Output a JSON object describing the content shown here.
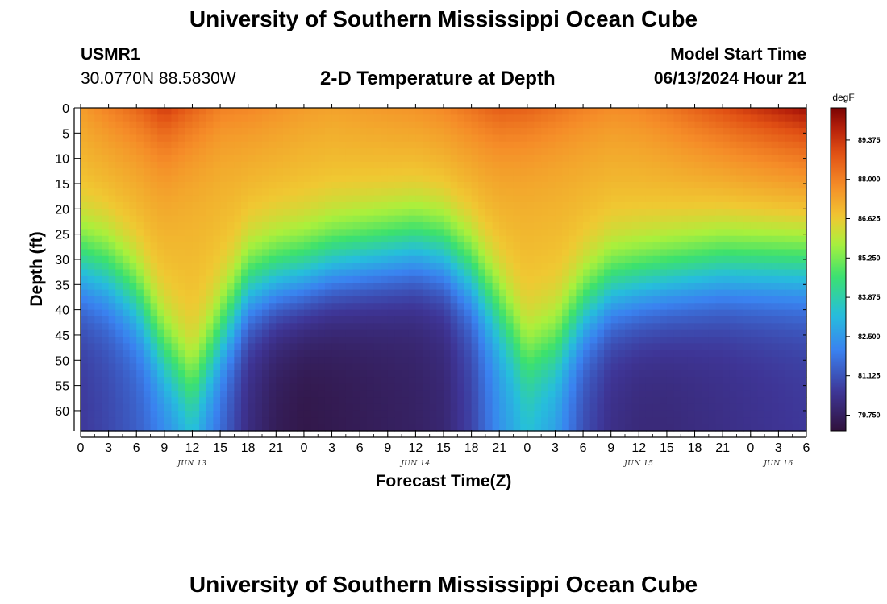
{
  "header": {
    "title": "University of Southern Mississippi Ocean Cube",
    "station": "USMR1",
    "coords": "30.0770N  88.5830W",
    "chart_title": "2-D Temperature at Depth",
    "model_label": "Model Start Time",
    "model_time": "06/13/2024 Hour 21"
  },
  "footer": {
    "title": "University of Southern Mississippi Ocean Cube"
  },
  "chart_data": {
    "type": "heatmap",
    "title": "2-D Temperature at Depth",
    "xlabel": "Forecast Time(Z)",
    "ylabel": "Depth (ft)",
    "x_unit": "hours from JUN 13 00Z",
    "xlim": [
      0,
      78
    ],
    "ylim": [
      0,
      64
    ],
    "x_ticks": [
      {
        "h": 0,
        "label": "0"
      },
      {
        "h": 3,
        "label": "3"
      },
      {
        "h": 6,
        "label": "6"
      },
      {
        "h": 9,
        "label": "9"
      },
      {
        "h": 12,
        "label": "12"
      },
      {
        "h": 15,
        "label": "15"
      },
      {
        "h": 18,
        "label": "18"
      },
      {
        "h": 21,
        "label": "21"
      },
      {
        "h": 24,
        "label": "0"
      },
      {
        "h": 27,
        "label": "3"
      },
      {
        "h": 30,
        "label": "6"
      },
      {
        "h": 33,
        "label": "9"
      },
      {
        "h": 36,
        "label": "12"
      },
      {
        "h": 39,
        "label": "15"
      },
      {
        "h": 42,
        "label": "18"
      },
      {
        "h": 45,
        "label": "21"
      },
      {
        "h": 48,
        "label": "0"
      },
      {
        "h": 51,
        "label": "3"
      },
      {
        "h": 54,
        "label": "6"
      },
      {
        "h": 57,
        "label": "9"
      },
      {
        "h": 60,
        "label": "12"
      },
      {
        "h": 63,
        "label": "15"
      },
      {
        "h": 66,
        "label": "18"
      },
      {
        "h": 69,
        "label": "21"
      },
      {
        "h": 72,
        "label": "0"
      },
      {
        "h": 75,
        "label": "3"
      },
      {
        "h": 78,
        "label": "6"
      }
    ],
    "date_labels": [
      {
        "h": 12,
        "label": "JUN 13"
      },
      {
        "h": 36,
        "label": "JUN 14"
      },
      {
        "h": 60,
        "label": "JUN 15"
      },
      {
        "h": 75,
        "label": "JUN 16"
      }
    ],
    "y_ticks": [
      0,
      5,
      10,
      15,
      20,
      25,
      30,
      35,
      40,
      45,
      50,
      55,
      60
    ],
    "colorbar": {
      "unit": "degF",
      "range": [
        79.2,
        90.5
      ],
      "ticks": [
        "89.375",
        "88.000",
        "86.625",
        "85.250",
        "83.875",
        "82.500",
        "81.125",
        "79.750"
      ]
    },
    "thermocline_depth_ft": {
      "hours": [
        0,
        3,
        6,
        9,
        12,
        15,
        18,
        21,
        24,
        27,
        30,
        33,
        36,
        39,
        42,
        45,
        48,
        51,
        54,
        57,
        60,
        63,
        66,
        69,
        72,
        75,
        78
      ],
      "values": [
        31,
        33,
        38,
        48,
        55,
        45,
        36,
        34,
        33,
        31,
        30,
        29,
        28,
        29,
        33,
        40,
        49,
        47,
        40,
        36,
        35,
        34,
        33,
        32,
        32,
        32,
        32
      ]
    },
    "deep_temp_degF": {
      "hours": [
        0,
        3,
        6,
        9,
        12,
        15,
        18,
        21,
        24,
        27,
        30,
        33,
        36,
        39,
        42,
        45,
        48,
        51,
        54,
        57,
        60,
        63,
        66,
        69,
        72,
        75,
        78
      ],
      "values": [
        80.6,
        80.9,
        81.3,
        82.0,
        82.8,
        81.5,
        80.2,
        79.6,
        79.4,
        79.5,
        79.6,
        79.7,
        79.8,
        80.0,
        80.8,
        82.3,
        83.2,
        82.5,
        81.0,
        80.3,
        80.1,
        80.1,
        80.2,
        80.3,
        80.4,
        80.5,
        80.6
      ]
    },
    "surface_temp_degF": {
      "hours": [
        0,
        3,
        6,
        9,
        12,
        15,
        18,
        21,
        24,
        27,
        30,
        33,
        36,
        39,
        42,
        45,
        48,
        51,
        54,
        57,
        60,
        63,
        66,
        69,
        72,
        75,
        78
      ],
      "values": [
        87.5,
        88.0,
        88.5,
        89.3,
        88.6,
        88.0,
        87.9,
        87.7,
        87.5,
        87.4,
        87.5,
        87.6,
        87.7,
        87.9,
        88.3,
        88.7,
        88.6,
        88.3,
        88.0,
        87.8,
        87.9,
        88.2,
        88.6,
        89.0,
        89.4,
        89.8,
        90.2
      ]
    }
  }
}
